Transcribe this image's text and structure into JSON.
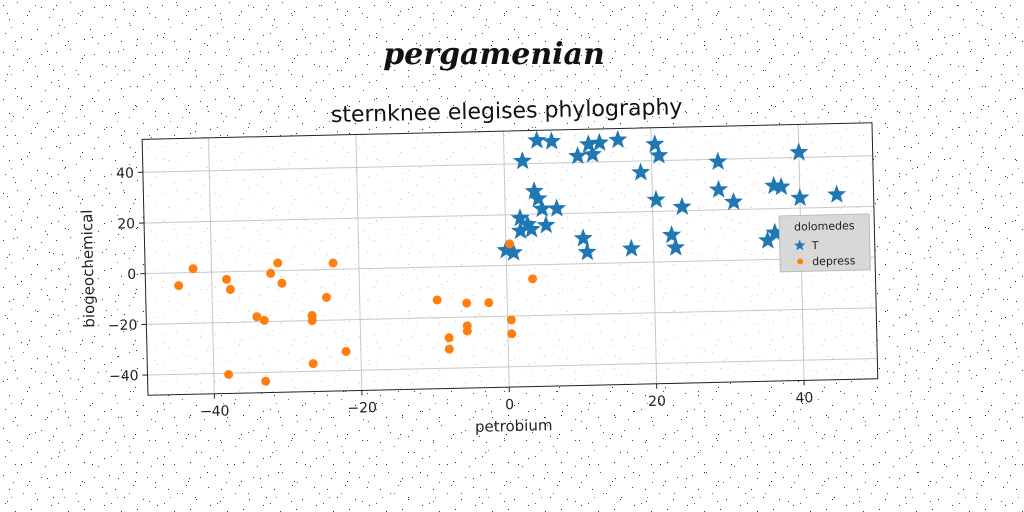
{
  "figure": {
    "suptitle": "pergamenian"
  },
  "chart_data": {
    "type": "scatter",
    "title": "sternknee elegises phylography",
    "xlabel": "petrobium",
    "ylabel": "biogeochemical",
    "xlim": [
      -49,
      50
    ],
    "ylim": [
      -48,
      53
    ],
    "xticks": [
      -40,
      -20,
      0,
      20,
      40
    ],
    "yticks": [
      -40,
      -20,
      0,
      20,
      40
    ],
    "grid": true,
    "legend": {
      "title": "dolomedes",
      "placement": "center-right"
    },
    "series": [
      {
        "name": "T",
        "marker": "star",
        "color": "#1f77b4",
        "points": [
          [
            4.5,
            49
          ],
          [
            6.5,
            48.5
          ],
          [
            11.5,
            47
          ],
          [
            13,
            47.5
          ],
          [
            15.5,
            48.5
          ],
          [
            20.5,
            46.5
          ],
          [
            2.5,
            41
          ],
          [
            10,
            42.5
          ],
          [
            12,
            43
          ],
          [
            21,
            42
          ],
          [
            29,
            39
          ],
          [
            40,
            42
          ],
          [
            18.5,
            35.5
          ],
          [
            4,
            29
          ],
          [
            4.5,
            26
          ],
          [
            29,
            28
          ],
          [
            36.5,
            29
          ],
          [
            37.5,
            28.5
          ],
          [
            5,
            22
          ],
          [
            7,
            22
          ],
          [
            20.5,
            24.5
          ],
          [
            24,
            21.5
          ],
          [
            31,
            23
          ],
          [
            40,
            24
          ],
          [
            45,
            25
          ],
          [
            2,
            18.5
          ],
          [
            3,
            16
          ],
          [
            2,
            13.5
          ],
          [
            3.5,
            14
          ],
          [
            5.5,
            15.5
          ],
          [
            10.5,
            10
          ],
          [
            22.5,
            10.5
          ],
          [
            0,
            6
          ],
          [
            1,
            5
          ],
          [
            11,
            4.5
          ],
          [
            17,
            5.5
          ],
          [
            23,
            5.5
          ],
          [
            35.5,
            7.5
          ],
          [
            36.5,
            10.5
          ]
        ]
      },
      {
        "name": "depress",
        "marker": "circle",
        "color": "#ff7f0e",
        "points": [
          [
            -44.5,
            -5
          ],
          [
            -42.5,
            1.5
          ],
          [
            -38,
            -3
          ],
          [
            -37.5,
            -7
          ],
          [
            -31,
            3
          ],
          [
            -32,
            -1
          ],
          [
            -30.5,
            -5
          ],
          [
            -23.5,
            2.5
          ],
          [
            -24.5,
            -11
          ],
          [
            -34,
            -18
          ],
          [
            -33,
            -19.5
          ],
          [
            -26.5,
            -18
          ],
          [
            -26.5,
            -20
          ],
          [
            -26.5,
            -37
          ],
          [
            -22,
            -32.5
          ],
          [
            -38,
            -40.5
          ],
          [
            -33,
            -43.5
          ],
          [
            -9.5,
            -13
          ],
          [
            -5.5,
            -14.5
          ],
          [
            -2.5,
            -14.5
          ],
          [
            -5.5,
            -23.5
          ],
          [
            -5.5,
            -25.5
          ],
          [
            -8,
            -28
          ],
          [
            -8,
            -32.5
          ],
          [
            0.5,
            -21.5
          ],
          [
            0.5,
            -27
          ],
          [
            0.5,
            8.5
          ],
          [
            3.5,
            -5.5
          ]
        ]
      }
    ]
  }
}
